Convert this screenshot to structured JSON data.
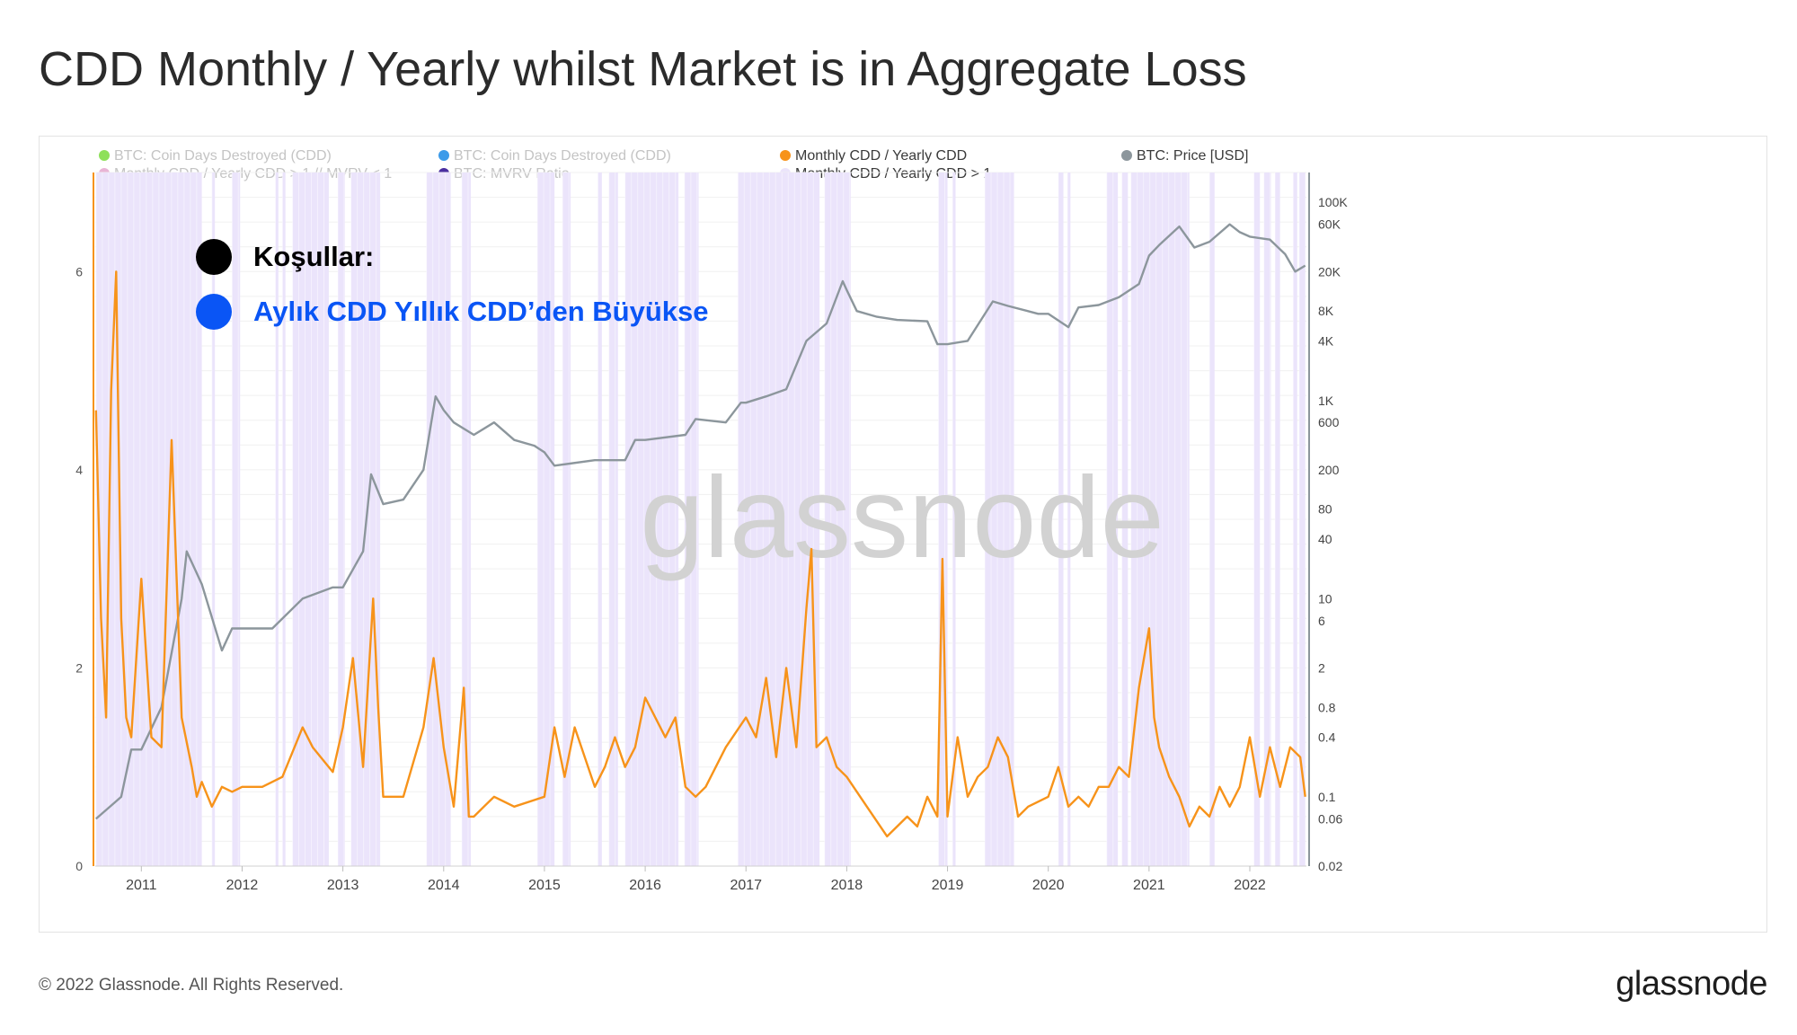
{
  "title": "CDD Monthly / Yearly whilst Market is in Aggregate Loss",
  "footer": {
    "copyright": "© 2022 Glassnode. All Rights Reserved.",
    "logo": "glassnode"
  },
  "watermark": "glassnode",
  "annotations": [
    {
      "text": "Koşullar:",
      "dot_color": "#000000",
      "text_color": "#000000"
    },
    {
      "text": "Aylık CDD Yıllık CDD’den Büyükse",
      "dot_color": "#0a55f5",
      "text_color": "#0a55f5"
    }
  ],
  "legend": [
    {
      "label": "BTC: Coin Days Destroyed (CDD)",
      "color": "#8ee05a",
      "muted": true
    },
    {
      "label": "Monthly CDD / Yearly CDD > 1 // MVRV < 1",
      "color": "#e8b4d6",
      "muted": true
    },
    {
      "label": "BTC: Coin Days Destroyed (CDD)",
      "color": "#3d9be9",
      "muted": true
    },
    {
      "label": "BTC: MVRV Ratio",
      "color": "#4a2ea0",
      "muted": true
    },
    {
      "label": "Monthly CDD / Yearly CDD",
      "color": "#f7931a",
      "muted": false
    },
    {
      "label": "Monthly CDD / Yearly CDD > 1",
      "color": "#ebe4fb",
      "muted": false
    },
    {
      "label": "BTC: Price [USD]",
      "color": "#8c969c",
      "muted": false
    }
  ],
  "chart_data": {
    "type": "line",
    "x_range": [
      "2010-07-18",
      "2022-07-25"
    ],
    "x_ticks": [
      "2011",
      "2012",
      "2013",
      "2014",
      "2015",
      "2016",
      "2017",
      "2018",
      "2019",
      "2020",
      "2021",
      "2022"
    ],
    "y_left": {
      "range": [
        0,
        7
      ],
      "ticks": [
        "0",
        "2",
        "4",
        "6"
      ]
    },
    "y_right": {
      "scale": "log",
      "range": [
        0.02,
        200000
      ],
      "ticks": [
        "0.02",
        "0.06",
        "0.1",
        "0.4",
        "0.8",
        "2",
        "6",
        "10",
        "40",
        "80",
        "200",
        "600",
        "1K",
        "4K",
        "8K",
        "20K",
        "60K",
        "100K"
      ]
    },
    "series": [
      {
        "name": "Monthly CDD / Yearly CDD",
        "axis": "left",
        "color": "#f7931a",
        "x": [
          2010.55,
          2010.6,
          2010.65,
          2010.7,
          2010.75,
          2010.8,
          2010.85,
          2010.9,
          2011.0,
          2011.1,
          2011.2,
          2011.3,
          2011.4,
          2011.5,
          2011.55,
          2011.6,
          2011.7,
          2011.8,
          2011.9,
          2012.0,
          2012.2,
          2012.4,
          2012.6,
          2012.7,
          2012.9,
          2013.0,
          2013.1,
          2013.2,
          2013.3,
          2013.35,
          2013.4,
          2013.5,
          2013.6,
          2013.8,
          2013.9,
          2014.0,
          2014.1,
          2014.2,
          2014.25,
          2014.3,
          2014.4,
          2014.5,
          2014.7,
          2015.0,
          2015.1,
          2015.2,
          2015.3,
          2015.5,
          2015.6,
          2015.7,
          2015.8,
          2015.9,
          2016.0,
          2016.1,
          2016.2,
          2016.3,
          2016.4,
          2016.5,
          2016.6,
          2016.8,
          2017.0,
          2017.1,
          2017.2,
          2017.3,
          2017.4,
          2017.5,
          2017.6,
          2017.65,
          2017.7,
          2017.8,
          2017.9,
          2018.0,
          2018.2,
          2018.4,
          2018.6,
          2018.7,
          2018.8,
          2018.9,
          2018.95,
          2019.0,
          2019.1,
          2019.2,
          2019.3,
          2019.4,
          2019.5,
          2019.6,
          2019.7,
          2019.8,
          2020.0,
          2020.1,
          2020.2,
          2020.3,
          2020.4,
          2020.5,
          2020.6,
          2020.7,
          2020.8,
          2020.9,
          2021.0,
          2021.05,
          2021.1,
          2021.2,
          2021.3,
          2021.4,
          2021.5,
          2021.6,
          2021.7,
          2021.8,
          2021.9,
          2022.0,
          2022.1,
          2022.2,
          2022.3,
          2022.4,
          2022.5,
          2022.55
        ],
        "y": [
          4.6,
          2.5,
          1.5,
          4.8,
          6.0,
          2.5,
          1.5,
          1.3,
          2.9,
          1.3,
          1.2,
          4.3,
          1.5,
          1.0,
          0.7,
          0.85,
          0.6,
          0.8,
          0.75,
          0.8,
          0.8,
          0.9,
          1.4,
          1.2,
          0.95,
          1.4,
          2.1,
          1.0,
          2.7,
          1.6,
          0.7,
          0.7,
          0.7,
          1.4,
          2.1,
          1.2,
          0.6,
          1.8,
          0.5,
          0.5,
          0.6,
          0.7,
          0.6,
          0.7,
          1.4,
          0.9,
          1.4,
          0.8,
          1.0,
          1.3,
          1.0,
          1.2,
          1.7,
          1.5,
          1.3,
          1.5,
          0.8,
          0.7,
          0.8,
          1.2,
          1.5,
          1.3,
          1.9,
          1.1,
          2.0,
          1.2,
          2.6,
          3.2,
          1.2,
          1.3,
          1.0,
          0.9,
          0.6,
          0.3,
          0.5,
          0.4,
          0.7,
          0.5,
          3.1,
          0.5,
          1.3,
          0.7,
          0.9,
          1.0,
          1.3,
          1.1,
          0.5,
          0.6,
          0.7,
          1.0,
          0.6,
          0.7,
          0.6,
          0.8,
          0.8,
          1.0,
          0.9,
          1.8,
          2.4,
          1.5,
          1.2,
          0.9,
          0.7,
          0.4,
          0.6,
          0.5,
          0.8,
          0.6,
          0.8,
          1.3,
          0.7,
          1.2,
          0.8,
          1.2,
          1.1,
          0.7
        ]
      },
      {
        "name": "BTC: Price [USD]",
        "axis": "right",
        "color": "#8c969c",
        "x": [
          2010.55,
          2010.8,
          2010.9,
          2011.0,
          2011.2,
          2011.4,
          2011.45,
          2011.6,
          2011.8,
          2011.9,
          2012.0,
          2012.3,
          2012.6,
          2012.9,
          2013.0,
          2013.2,
          2013.28,
          2013.4,
          2013.6,
          2013.8,
          2013.92,
          2014.0,
          2014.1,
          2014.3,
          2014.5,
          2014.7,
          2014.9,
          2015.0,
          2015.1,
          2015.5,
          2015.8,
          2015.9,
          2016.0,
          2016.4,
          2016.5,
          2016.8,
          2016.95,
          2017.0,
          2017.2,
          2017.4,
          2017.6,
          2017.8,
          2017.96,
          2018.0,
          2018.1,
          2018.3,
          2018.5,
          2018.8,
          2018.9,
          2019.0,
          2019.2,
          2019.45,
          2019.6,
          2019.9,
          2020.0,
          2020.2,
          2020.3,
          2020.5,
          2020.7,
          2020.9,
          2021.0,
          2021.1,
          2021.3,
          2021.45,
          2021.6,
          2021.8,
          2021.9,
          2022.0,
          2022.2,
          2022.35,
          2022.45,
          2022.55
        ],
        "y": [
          0.06,
          0.1,
          0.3,
          0.3,
          0.8,
          10,
          30,
          14,
          3,
          5,
          5,
          5,
          10,
          13,
          13,
          30,
          180,
          90,
          100,
          200,
          1100,
          800,
          600,
          450,
          600,
          400,
          350,
          300,
          220,
          250,
          250,
          400,
          400,
          450,
          650,
          600,
          950,
          950,
          1100,
          1300,
          4000,
          6000,
          16000,
          13000,
          8000,
          7000,
          6500,
          6300,
          3700,
          3700,
          4000,
          10000,
          9000,
          7500,
          7500,
          5500,
          8700,
          9200,
          11000,
          15000,
          29000,
          37000,
          57000,
          35000,
          40000,
          60000,
          50000,
          45000,
          42000,
          30000,
          20000,
          23000
        ]
      },
      {
        "name": "Monthly CDD / Yearly CDD > 1",
        "type": "band",
        "color": "#ebe4fb",
        "intervals": [
          [
            2010.55,
            2011.6
          ],
          [
            2011.7,
            2011.73
          ],
          [
            2011.9,
            2011.98
          ],
          [
            2012.33,
            2012.36
          ],
          [
            2012.4,
            2012.43
          ],
          [
            2012.5,
            2012.86
          ],
          [
            2012.95,
            2013.02
          ],
          [
            2013.08,
            2013.37
          ],
          [
            2013.83,
            2014.07
          ],
          [
            2014.18,
            2014.27
          ],
          [
            2014.93,
            2015.1
          ],
          [
            2015.18,
            2015.26
          ],
          [
            2015.53,
            2015.57
          ],
          [
            2015.64,
            2015.73
          ],
          [
            2015.8,
            2016.33
          ],
          [
            2016.39,
            2016.53
          ],
          [
            2016.92,
            2017.73
          ],
          [
            2017.78,
            2018.04
          ],
          [
            2018.91,
            2019.0
          ],
          [
            2019.05,
            2019.08
          ],
          [
            2019.37,
            2019.66
          ],
          [
            2020.1,
            2020.15
          ],
          [
            2020.19,
            2020.22
          ],
          [
            2020.58,
            2020.69
          ],
          [
            2020.73,
            2020.79
          ],
          [
            2020.82,
            2021.4
          ],
          [
            2021.6,
            2021.65
          ],
          [
            2022.04,
            2022.1
          ],
          [
            2022.14,
            2022.21
          ],
          [
            2022.25,
            2022.3
          ],
          [
            2022.43,
            2022.47
          ],
          [
            2022.49,
            2022.55
          ]
        ]
      }
    ]
  }
}
